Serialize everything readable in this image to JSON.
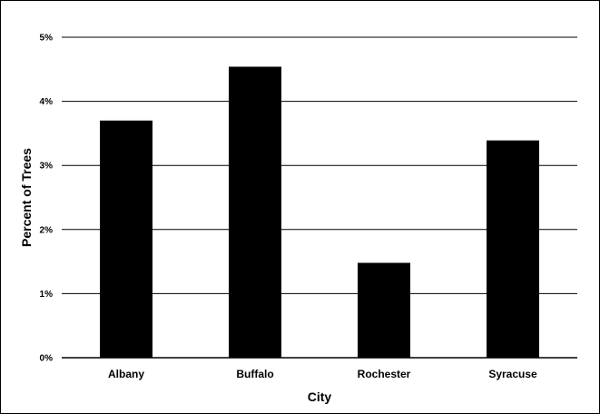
{
  "chart_data": {
    "type": "bar",
    "title": "",
    "xlabel": "City",
    "ylabel": "Percent of Trees",
    "categories": [
      "Albany",
      "Buffalo",
      "Rochester",
      "Syracuse"
    ],
    "values": [
      3.7,
      4.54,
      1.48,
      3.39
    ],
    "value_unit": "%",
    "ylim": [
      0,
      5
    ],
    "yticks": [
      0,
      1,
      2,
      3,
      4,
      5
    ],
    "ytick_labels": [
      "0%",
      "1%",
      "2%",
      "3%",
      "4%",
      "5%"
    ],
    "grid": true,
    "legend": "none",
    "bar_color": "#000000"
  }
}
